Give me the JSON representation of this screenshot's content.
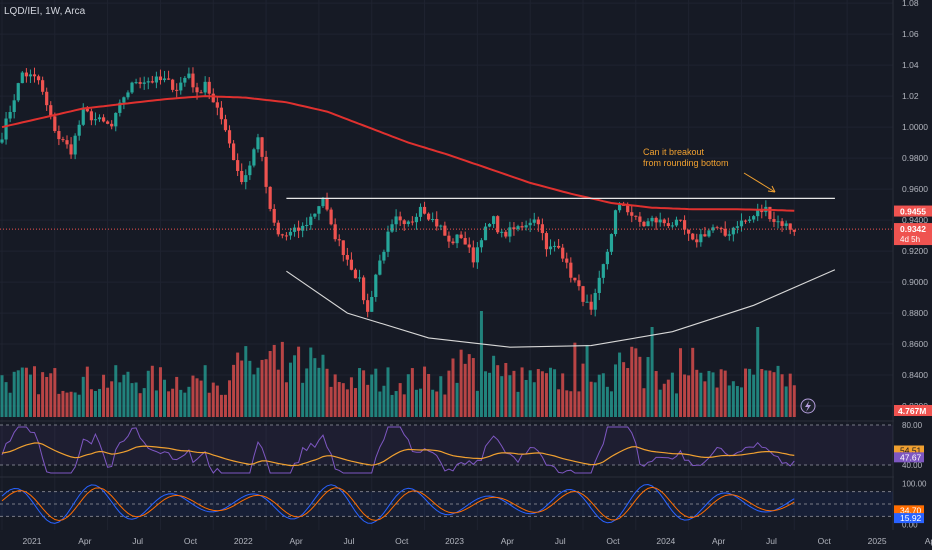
{
  "symbol_line": "LQD/IEI, 1W, Arca",
  "annotation": {
    "line1": "Can it breakout",
    "line2": "from rounding bottom"
  },
  "colors": {
    "bg": "#161a25",
    "up": "#26a69a",
    "down": "#ef5350",
    "ma": "#e0312f",
    "rsi": "#7e57c2",
    "rsi_ma": "#f0a030",
    "stoch_k": "#2962ff",
    "stoch_d": "#ff6d00",
    "annotation": "#f0a030",
    "grid": "#1f2330"
  },
  "chart_data": {
    "type": "candlestick",
    "timeframe": "weekly",
    "price_axis": {
      "ticks": [
        "1.08",
        "1.06",
        "1.04",
        "1.02",
        "1.0000",
        "0.9800",
        "0.9600",
        "0.9400",
        "0.9200",
        "0.9000",
        "0.8800",
        "0.8600",
        "0.8400",
        "0.8200"
      ],
      "range": [
        0.811,
        1.082
      ]
    },
    "x_ticks": [
      "2021",
      "Apr",
      "Jul",
      "Oct",
      "2022",
      "Apr",
      "Jul",
      "Oct",
      "2023",
      "Apr",
      "Jul",
      "Oct",
      "2024",
      "Apr",
      "Jul",
      "Oct",
      "2025",
      "Ap"
    ],
    "x_tick_weeks": [
      0,
      13,
      26,
      39,
      52,
      65,
      78,
      91,
      104,
      117,
      130,
      143,
      156,
      169,
      182,
      195,
      208,
      221
    ],
    "price_path": {
      "weeks": [
        0,
        5,
        9,
        12,
        14,
        17,
        20,
        23,
        27,
        30,
        33,
        36,
        40,
        43,
        46,
        48,
        50,
        52,
        55,
        57,
        59,
        61,
        63,
        66,
        68,
        70,
        74,
        77,
        79,
        81,
        83,
        85,
        88,
        90,
        92,
        95,
        97,
        99,
        101,
        103,
        106,
        108,
        110,
        113,
        116,
        118,
        121,
        123,
        127,
        130,
        132,
        134,
        137,
        139,
        141,
        143,
        145,
        147,
        149,
        151,
        153,
        156,
        158,
        160,
        164,
        167,
        170,
        172,
        175,
        178,
        181,
        184,
        186,
        188,
        190,
        192,
        194,
        195
      ],
      "closes": [
        0.995,
        1.035,
        1.03,
        1.005,
        0.993,
        0.985,
        1.01,
        1.005,
        1.0,
        1.02,
        1.03,
        1.03,
        1.03,
        1.025,
        1.035,
        1.02,
        1.03,
        1.015,
        1.0,
        0.98,
        0.965,
        0.975,
        0.995,
        0.945,
        0.93,
        0.93,
        0.935,
        0.945,
        0.955,
        0.935,
        0.925,
        0.915,
        0.9,
        0.88,
        0.905,
        0.93,
        0.94,
        0.935,
        0.94,
        0.95,
        0.94,
        0.935,
        0.925,
        0.93,
        0.915,
        0.93,
        0.94,
        0.93,
        0.935,
        0.94,
        0.94,
        0.92,
        0.925,
        0.91,
        0.9,
        0.89,
        0.88,
        0.9,
        0.92,
        0.945,
        0.95,
        0.94,
        0.937,
        0.94,
        0.938,
        0.937,
        0.925,
        0.93,
        0.935,
        0.93,
        0.938,
        0.94,
        0.945,
        0.947,
        0.94,
        0.938,
        0.935,
        0.934
      ]
    },
    "moving_average": {
      "weeks": [
        0,
        20,
        40,
        50,
        60,
        70,
        80,
        90,
        100,
        110,
        120,
        130,
        140,
        150,
        160,
        170,
        180,
        190,
        195
      ],
      "values": [
        1.0,
        1.012,
        1.018,
        1.02,
        1.019,
        1.016,
        1.01,
        1.0,
        0.99,
        0.982,
        0.973,
        0.964,
        0.957,
        0.951,
        0.948,
        0.947,
        0.947,
        0.9465,
        0.946
      ]
    },
    "resistance": {
      "price": 0.954,
      "from_week": 70,
      "to_week": 205
    },
    "rounding_bottom": [
      [
        70,
        0.907
      ],
      [
        85,
        0.88
      ],
      [
        105,
        0.864
      ],
      [
        125,
        0.858
      ],
      [
        145,
        0.859
      ],
      [
        165,
        0.868
      ],
      [
        185,
        0.885
      ],
      [
        205,
        0.908
      ]
    ],
    "price_labels": [
      {
        "text": "0.9455",
        "price": 0.9455,
        "color": "#ef5350"
      },
      {
        "text": "0.9342",
        "price": 0.9342,
        "color": "#ef5350",
        "sub": "4d 5h"
      }
    ],
    "volume_label": "4.767M",
    "rsi": {
      "ticks": [
        "80.00",
        "40.00"
      ],
      "levels": [
        80,
        40
      ],
      "range": [
        30,
        82
      ],
      "labels": [
        "54.51",
        "47.67"
      ]
    },
    "stochastic": {
      "ticks": [
        "100.00",
        "0.00"
      ],
      "levels": [
        100,
        0
      ],
      "range": [
        -8,
        108
      ],
      "labels": [
        "34.70",
        "15.92"
      ]
    }
  }
}
